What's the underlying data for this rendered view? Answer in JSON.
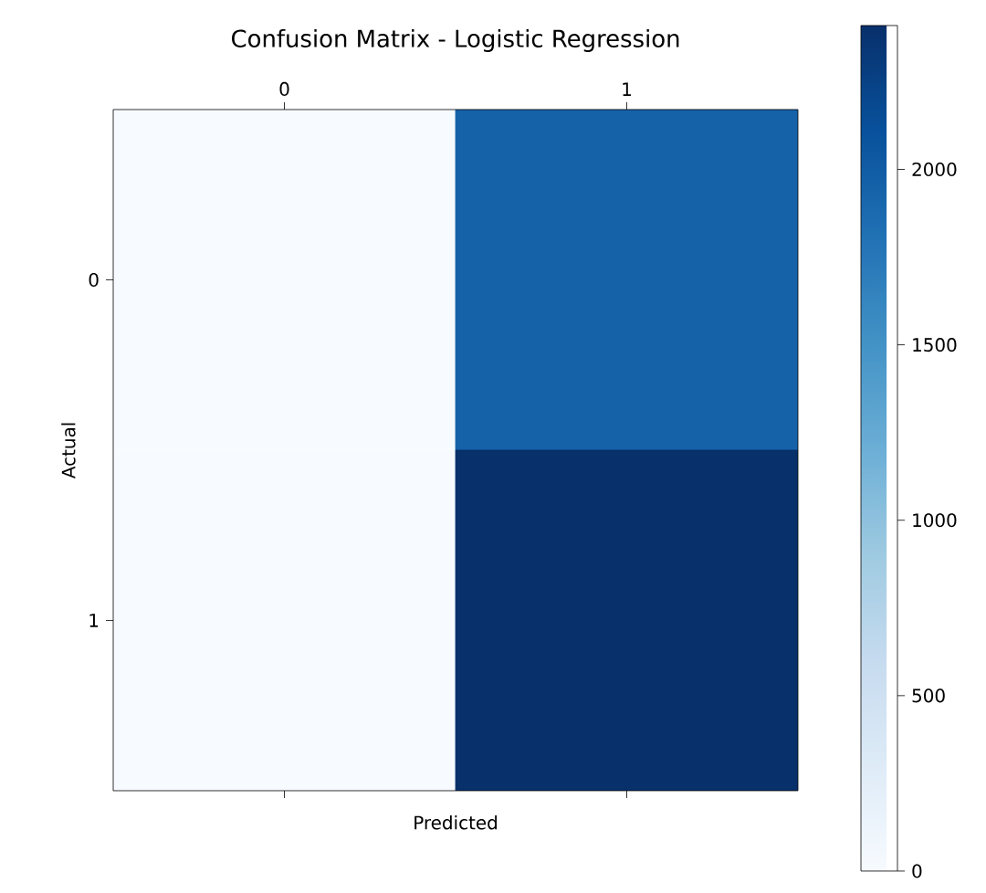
{
  "chart_data": {
    "type": "heatmap",
    "title": "Confusion Matrix - Logistic Regression",
    "xlabel": "Predicted",
    "ylabel": "Actual",
    "categories": [
      "0",
      "1"
    ],
    "y_categories": [
      "0",
      "1"
    ],
    "cells": [
      [
        0,
        1950
      ],
      [
        0,
        2410
      ]
    ],
    "clim": [
      0,
      2410
    ],
    "cticks": [
      0,
      500,
      1000,
      1500,
      2000
    ]
  }
}
